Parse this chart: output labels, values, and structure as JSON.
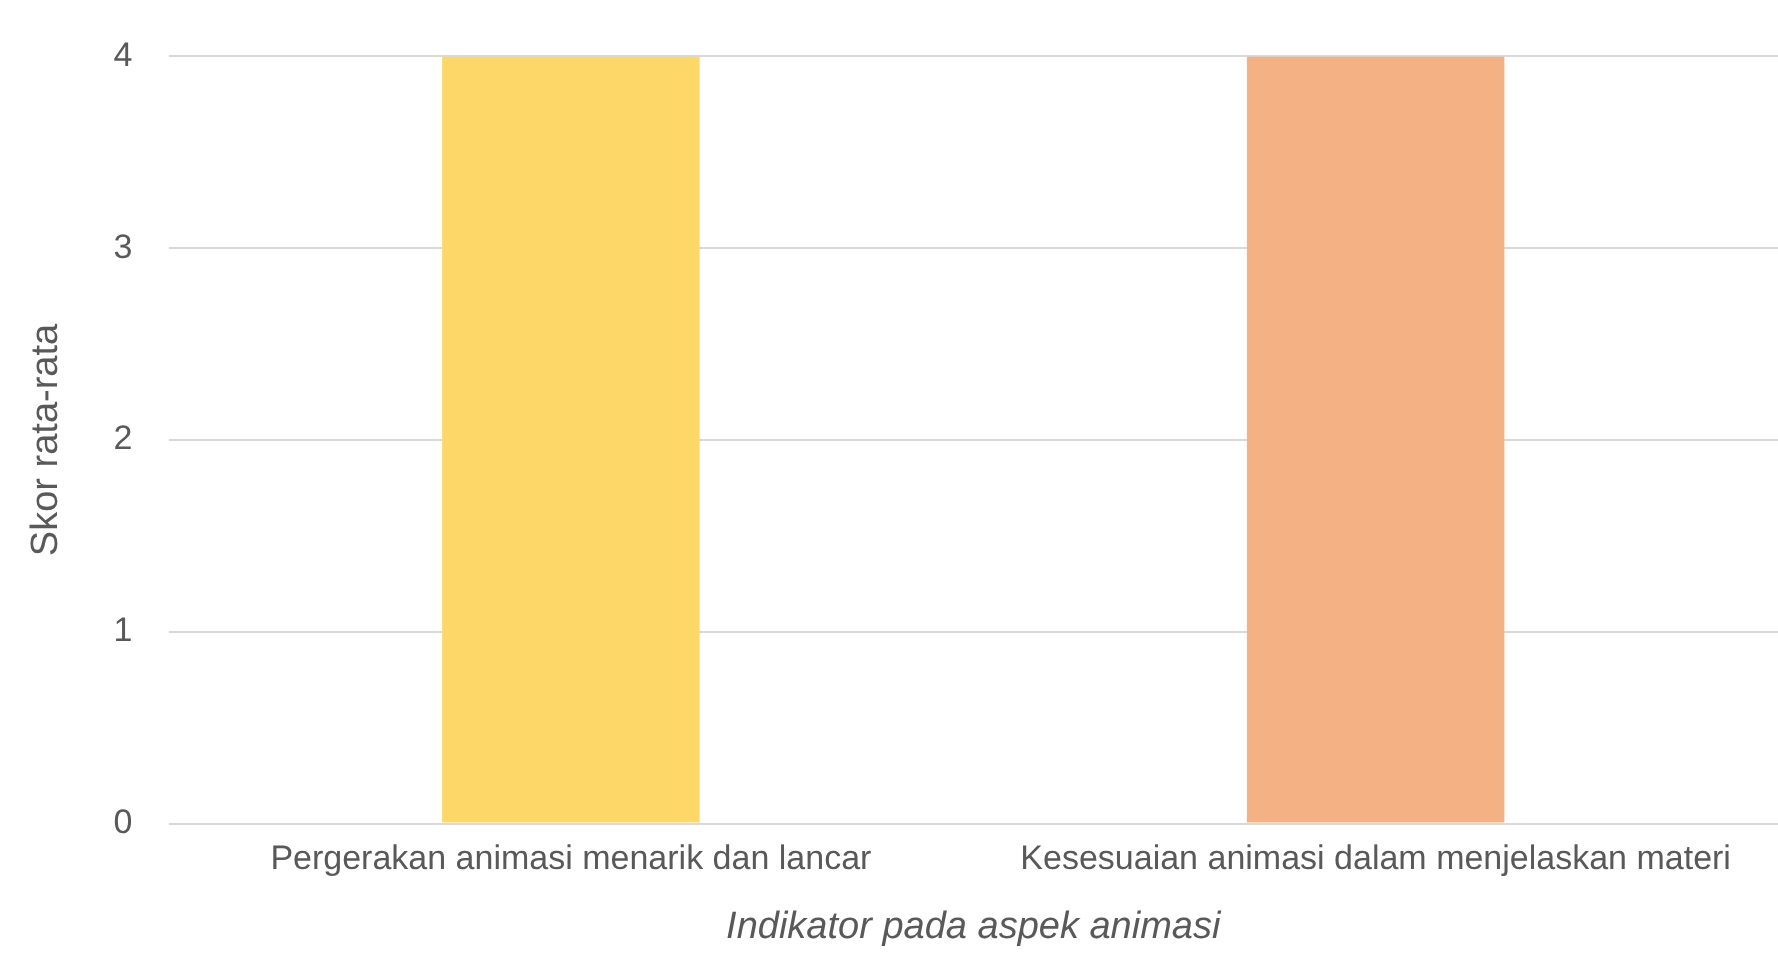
{
  "chart_data": {
    "type": "bar",
    "xlabel": "Indikator pada aspek animasi",
    "ylabel": "Skor rata-rata",
    "categories": [
      "Pergerakan animasi menarik dan lancar",
      "Kesesuaian animasi dalam menjelaskan materi"
    ],
    "values": [
      4,
      4
    ],
    "colors": [
      "#fdd868",
      "#f4b183"
    ],
    "ylim": [
      0,
      4
    ],
    "yticks": [
      0,
      1,
      2,
      3,
      4
    ],
    "grid": "y",
    "legend": false
  }
}
